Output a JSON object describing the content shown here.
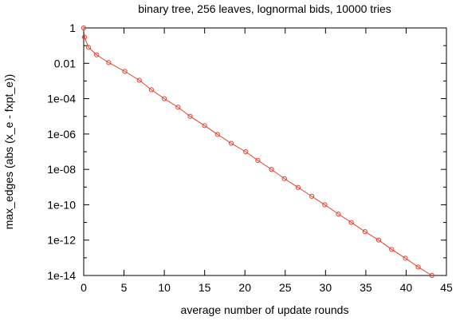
{
  "chart_data": {
    "type": "line",
    "title": "binary tree, 256 leaves, lognormal bids, 10000 tries",
    "xlabel": "average number of update rounds",
    "ylabel": "max_edges (abs (x_e - fxpt_e))",
    "xlim": [
      0,
      45
    ],
    "ylim": [
      1e-14,
      1
    ],
    "y_scale": "log",
    "x_ticks": [
      0,
      5,
      10,
      15,
      20,
      25,
      30,
      35,
      40,
      45
    ],
    "x_tick_labels": [
      "0",
      "5",
      "10",
      "15",
      "20",
      "25",
      "30",
      "35",
      "40",
      "45"
    ],
    "y_ticks": [
      1,
      0.01,
      0.0001,
      1e-06,
      1e-08,
      1e-10,
      1e-12,
      1e-14
    ],
    "y_tick_labels": [
      "1",
      "0.01",
      "1e-04",
      "1e-06",
      "1e-08",
      "1e-10",
      "1e-12",
      "1e-14"
    ],
    "grid": false,
    "series": [
      {
        "color": "#e8412c",
        "marker": "circle",
        "x": [
          0.0,
          0.1,
          0.6,
          1.6,
          3.1,
          5.1,
          6.9,
          8.4,
          10.0,
          11.7,
          13.2,
          15.0,
          16.6,
          18.3,
          20.1,
          21.6,
          23.3,
          24.9,
          26.6,
          28.3,
          29.9,
          31.6,
          33.2,
          34.9,
          36.6,
          38.2,
          39.9,
          41.5,
          43.2
        ],
        "y": [
          1.0,
          0.3,
          0.08,
          0.03,
          0.011,
          0.0035,
          0.0011,
          0.00032,
          0.0001,
          3.3e-05,
          1e-05,
          3e-06,
          9.5e-07,
          3e-07,
          1e-07,
          3.2e-08,
          1e-08,
          3e-09,
          9.5e-10,
          3e-10,
          1e-10,
          3e-11,
          1e-11,
          3e-12,
          1e-12,
          3e-13,
          9.5e-14,
          3e-14,
          1e-14
        ]
      }
    ]
  }
}
